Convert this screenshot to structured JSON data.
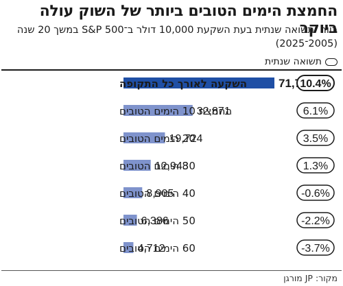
{
  "title": "החמצת הימים הטובים ביותר של השוק עולה ביוקר",
  "subtitle_line1": "רווח ותשואה שנתית בעת השקעת 10,000 דולר ב־S&P 500 במשך 20 שנה",
  "subtitle_line2": "(2005־2025)",
  "legend_label": "תשואה שנתית",
  "source": "מקור: JP מורגן",
  "colors": {
    "highlight": "#1f4fa5",
    "bar": "#7f93cc",
    "text": "#1a1a1a"
  },
  "chart_data": {
    "type": "bar",
    "orientation": "horizontal",
    "categories": [
      "השקעה לאורך כל התקופה",
      "החמצת 10 הימים הטובים",
      "20 הימים הטובים",
      "30 הימים הטובים",
      "40 הימים הטובים",
      "50 הימים הטובים",
      "60 הימים הטובים"
    ],
    "values": [
      71750,
      32871,
      19724,
      12948,
      8905,
      6386,
      4712
    ],
    "value_labels": [
      "71,750",
      "32,871",
      "19,724",
      "12,948",
      "8,905",
      "6,386",
      "4,712"
    ],
    "annual_return": [
      "10.4%",
      "6.1%",
      "3.5%",
      "1.3%",
      "-0.6%",
      "-2.2%",
      "-3.7%"
    ],
    "highlight_index": 0
  }
}
